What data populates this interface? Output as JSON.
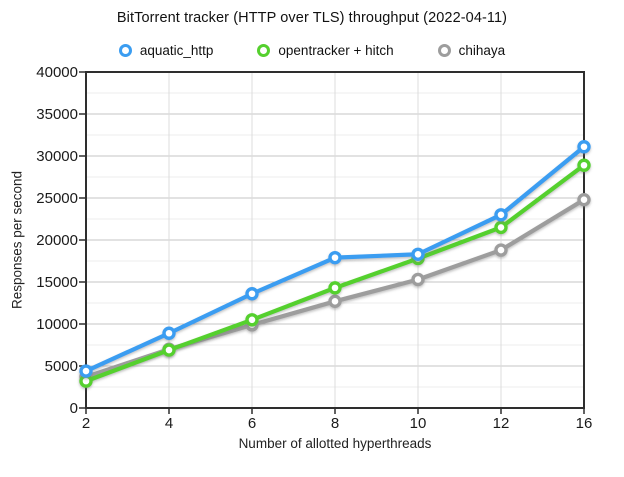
{
  "chart_data": {
    "type": "line",
    "title": "BitTorrent tracker (HTTP over TLS) throughput (2022-04-11)",
    "xlabel": "Number of allotted hyperthreads",
    "ylabel": "Responses per second",
    "categories": [
      2,
      4,
      6,
      8,
      10,
      12,
      16
    ],
    "series": [
      {
        "name": "aquatic_http",
        "color": "#3b9df1",
        "values": [
          4400,
          8900,
          13600,
          17900,
          18300,
          23000,
          31100
        ]
      },
      {
        "name": "opentracker + hitch",
        "color": "#55d02e",
        "values": [
          3200,
          6900,
          10500,
          14300,
          17800,
          21500,
          28900
        ]
      },
      {
        "name": "chihaya",
        "color": "#9d9d9d",
        "values": [
          3700,
          7000,
          9900,
          12700,
          15300,
          18800,
          24800
        ]
      }
    ],
    "ylim": [
      0,
      40000
    ],
    "y_major_step": 5000,
    "y_minor_step": 2500,
    "y_tick_labels": [
      "0",
      "5000",
      "10000",
      "15000",
      "20000",
      "25000",
      "30000",
      "35000",
      "40000"
    ],
    "x_tick_labels": [
      "2",
      "4",
      "6",
      "8",
      "10",
      "12",
      "16"
    ],
    "grid": "on",
    "legend_position": "top",
    "colors": {
      "axis": "#2e2e2e",
      "major_grid": "#c4c4c4",
      "minor_grid": "#ececec",
      "vertical_grid": "#dddddd",
      "text": "#1a1a1a"
    }
  }
}
